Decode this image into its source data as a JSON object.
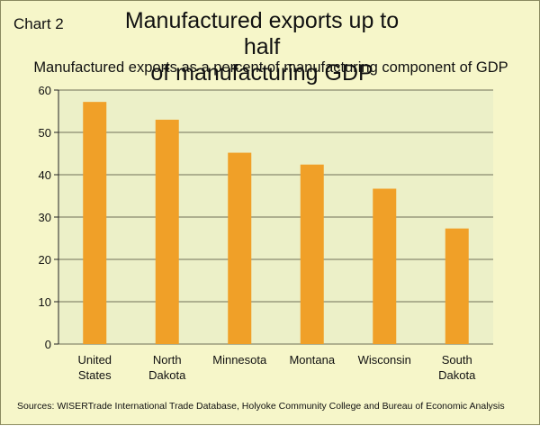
{
  "chart_label": "Chart 2",
  "colors": {
    "bar": "#f0a028",
    "plot_bg": "#ecf0c8",
    "page_bg": "#f6f6c9",
    "grid": "#6f6f58"
  },
  "chart_data": {
    "type": "bar",
    "title_line1": "Manufactured exports up to half",
    "title_line2": "of manufacturing GDP",
    "subtitle": "Manufactured exports as a percent of manufacturing component of GDP",
    "categories": [
      [
        "United",
        "States"
      ],
      [
        "North",
        "Dakota"
      ],
      [
        "Minnesota"
      ],
      [
        "Montana"
      ],
      [
        "Wisconsin"
      ],
      [
        "South",
        "Dakota"
      ]
    ],
    "values": [
      57.2,
      53.0,
      45.2,
      42.4,
      36.7,
      27.3
    ],
    "ylim": [
      0,
      60
    ],
    "yticks": [
      0,
      10,
      20,
      30,
      40,
      50,
      60
    ],
    "grid": true,
    "legend": "none"
  },
  "sources": "Sources:  WISERTrade International Trade Database, Holyoke Community College and Bureau of Economic Analysis"
}
